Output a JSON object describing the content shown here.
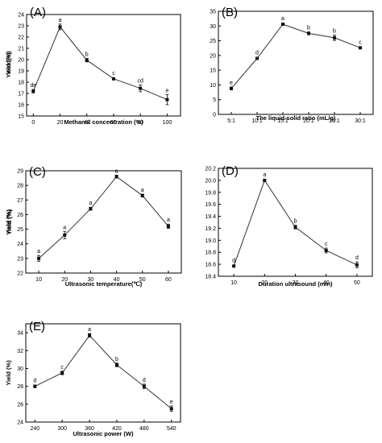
{
  "chart_data": [
    {
      "id": "A",
      "panel_label": "(A)",
      "type": "line",
      "xlabel": "Methanol concentration (%)",
      "ylabel": "Yield (%)",
      "x": [
        0,
        20,
        40,
        60,
        80,
        100
      ],
      "y": [
        17.2,
        22.9,
        19.95,
        18.3,
        17.45,
        16.45
      ],
      "err": [
        0.15,
        0.25,
        0.15,
        0.1,
        0.3,
        0.45
      ],
      "sig": [
        "de",
        "a",
        "b",
        "c",
        "cd",
        "e"
      ],
      "xlim": [
        -5,
        110
      ],
      "ylim": [
        15,
        24
      ],
      "xticks": [
        "0",
        "20",
        "40",
        "60",
        "80",
        "100"
      ],
      "yticks": [
        "15",
        "16",
        "17",
        "18",
        "19",
        "20",
        "21",
        "22",
        "23",
        "24"
      ]
    },
    {
      "id": "B",
      "panel_label": "(B)",
      "type": "line",
      "xlabel": "The liquid-solid ratio (mL/g)",
      "ylabel": "Yield(%)",
      "categories": [
        "5:1",
        "10:1",
        "15:1",
        "20:1",
        "25:1",
        "30:1"
      ],
      "y": [
        8.8,
        19.0,
        30.6,
        27.5,
        26.0,
        22.6
      ],
      "err": [
        0.5,
        0.3,
        0.4,
        0.5,
        0.9,
        0.3
      ],
      "sig": [
        "e",
        "d",
        "a",
        "b",
        "b",
        "c"
      ],
      "ylim": [
        0,
        35
      ],
      "yticks": [
        "0",
        "5",
        "10",
        "15",
        "20",
        "25",
        "30",
        "35"
      ]
    },
    {
      "id": "C",
      "panel_label": "(C)",
      "type": "line",
      "xlabel": "Ultrasonic temperature(℃)",
      "ylabel": "Yield (%)",
      "x": [
        10,
        20,
        30,
        40,
        50,
        60
      ],
      "y": [
        23.0,
        24.6,
        26.4,
        28.6,
        27.3,
        25.2
      ],
      "err": [
        0.2,
        0.25,
        0.1,
        0.1,
        0.1,
        0.15
      ],
      "sig": [
        "a",
        "a",
        "a",
        "a",
        "a",
        "a"
      ],
      "xlim": [
        5,
        65
      ],
      "ylim": [
        22,
        29
      ],
      "xticks": [
        "10",
        "20",
        "30",
        "40",
        "50",
        "60"
      ],
      "yticks": [
        "22",
        "23",
        "24",
        "25",
        "26",
        "27",
        "28",
        "29"
      ]
    },
    {
      "id": "D",
      "panel_label": "(D)",
      "type": "line",
      "xlabel": "Duration ultrasound (min)",
      "ylabel": "Yield (%)",
      "x": [
        10,
        20,
        30,
        40,
        50
      ],
      "y": [
        18.57,
        20.0,
        19.22,
        18.83,
        18.59
      ],
      "err": [
        0.01,
        0.02,
        0.03,
        0.04,
        0.05
      ],
      "sig": [
        "d",
        "a",
        "b",
        "c",
        "d"
      ],
      "xlim": [
        5,
        55
      ],
      "ylim": [
        18.4,
        20.2
      ],
      "xticks": [
        "10",
        "20",
        "30",
        "40",
        "50"
      ],
      "yticks": [
        "18.4",
        "18.6",
        "18.8",
        "19.0",
        "19.2",
        "19.4",
        "19.6",
        "19.8",
        "20.0",
        "20.2"
      ]
    },
    {
      "id": "E",
      "panel_label": "(E)",
      "type": "line",
      "xlabel": "Ultrasonic power (W)",
      "ylabel": "Yield (%)",
      "x": [
        240,
        300,
        360,
        420,
        480,
        540
      ],
      "y": [
        28.0,
        29.5,
        33.7,
        30.4,
        28.0,
        25.5
      ],
      "err": [
        0.15,
        0.2,
        0.2,
        0.2,
        0.25,
        0.3
      ],
      "sig": [
        "d",
        "c",
        "a",
        "b",
        "d",
        "e"
      ],
      "xlim": [
        220,
        560
      ],
      "ylim": [
        24,
        35
      ],
      "xticks": [
        "240",
        "300",
        "360",
        "420",
        "480",
        "540"
      ],
      "yticks": [
        "24",
        "26",
        "28",
        "30",
        "32",
        "34"
      ]
    }
  ]
}
